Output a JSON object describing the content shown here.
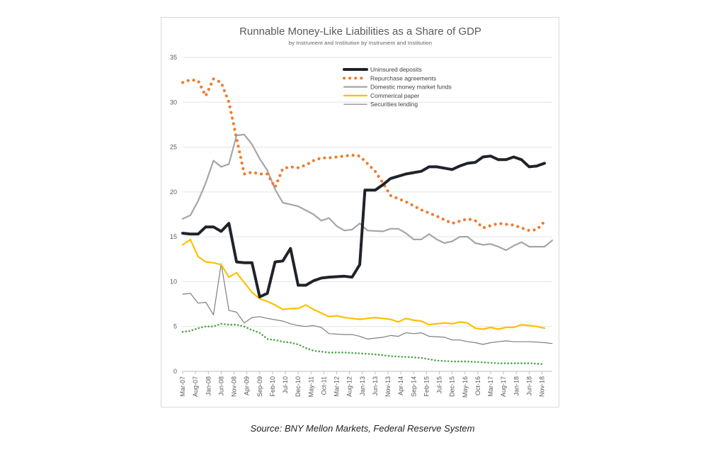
{
  "chart_data": {
    "type": "line",
    "title": "Runnable Money-Like Liabilities as a Share of GDP",
    "subtitle": "by Instrument and Institution by Instrument and Institution",
    "xlabel": "",
    "ylabel": "",
    "ylim": [
      0,
      35
    ],
    "yticks": [
      0,
      5,
      10,
      15,
      20,
      25,
      30,
      35
    ],
    "x_start": "2007-03",
    "x_end": "2019-03",
    "x_ticks": [
      "Mar-07",
      "Aug-07",
      "Jan-08",
      "Jun-08",
      "Nov-08",
      "Apr-09",
      "Sep-09",
      "Feb-10",
      "Jul-10",
      "Dec-10",
      "May-11",
      "Oct-11",
      "Mar-12",
      "Aug-12",
      "Jan-13",
      "Jun-13",
      "Nov-13",
      "Apr-14",
      "Sep-14",
      "Feb-15",
      "Jul-15",
      "Dec-15",
      "May-16",
      "Oct-16",
      "Mar-17",
      "Aug-17",
      "Jan-18",
      "Jun-18",
      "Nov-18"
    ],
    "grid": "horizontal",
    "legend_position": "top-center",
    "series": [
      {
        "name": "Uninsured deposits",
        "color": "#1f2329",
        "style": "solid-thick",
        "points": [
          [
            "2007-03",
            15.4
          ],
          [
            "2007-06",
            15.3
          ],
          [
            "2007-09",
            15.3
          ],
          [
            "2007-12",
            16.1
          ],
          [
            "2008-03",
            16.1
          ],
          [
            "2008-06",
            15.6
          ],
          [
            "2008-09",
            16.5
          ],
          [
            "2008-12",
            12.2
          ],
          [
            "2009-03",
            12.1
          ],
          [
            "2009-06",
            12.1
          ],
          [
            "2009-09",
            8.3
          ],
          [
            "2009-12",
            8.7
          ],
          [
            "2010-03",
            12.2
          ],
          [
            "2010-06",
            12.3
          ],
          [
            "2010-09",
            13.7
          ],
          [
            "2010-12",
            9.6
          ],
          [
            "2011-03",
            9.6
          ],
          [
            "2011-06",
            10.1
          ],
          [
            "2011-09",
            10.4
          ],
          [
            "2011-12",
            10.5
          ],
          [
            "2012-06",
            10.6
          ],
          [
            "2012-09",
            10.5
          ],
          [
            "2012-12",
            11.9
          ],
          [
            "2013-02",
            20.2
          ],
          [
            "2013-06",
            20.2
          ],
          [
            "2013-09",
            20.8
          ],
          [
            "2013-12",
            21.5
          ],
          [
            "2014-06",
            22.0
          ],
          [
            "2014-12",
            22.3
          ],
          [
            "2015-03",
            22.8
          ],
          [
            "2015-06",
            22.8
          ],
          [
            "2015-12",
            22.5
          ],
          [
            "2016-03",
            22.9
          ],
          [
            "2016-06",
            23.2
          ],
          [
            "2016-09",
            23.3
          ],
          [
            "2016-12",
            23.9
          ],
          [
            "2017-03",
            24.0
          ],
          [
            "2017-06",
            23.6
          ],
          [
            "2017-09",
            23.6
          ],
          [
            "2017-12",
            23.9
          ],
          [
            "2018-03",
            23.6
          ],
          [
            "2018-06",
            22.8
          ],
          [
            "2018-09",
            22.9
          ],
          [
            "2018-12",
            23.2
          ]
        ]
      },
      {
        "name": "Repurchase agreements",
        "color": "#ed7d31",
        "style": "dotted",
        "points": [
          [
            "2007-03",
            32.2
          ],
          [
            "2007-06",
            32.5
          ],
          [
            "2007-09",
            32.4
          ],
          [
            "2007-12",
            30.7
          ],
          [
            "2008-03",
            32.6
          ],
          [
            "2008-06",
            32.2
          ],
          [
            "2008-09",
            30.0
          ],
          [
            "2008-12",
            26.0
          ],
          [
            "2009-03",
            22.0
          ],
          [
            "2009-06",
            22.2
          ],
          [
            "2009-09",
            22.0
          ],
          [
            "2009-12",
            22.0
          ],
          [
            "2010-03",
            20.5
          ],
          [
            "2010-06",
            22.6
          ],
          [
            "2010-09",
            22.8
          ],
          [
            "2010-12",
            22.7
          ],
          [
            "2011-03",
            23.0
          ],
          [
            "2011-06",
            23.5
          ],
          [
            "2011-09",
            23.8
          ],
          [
            "2011-12",
            23.8
          ],
          [
            "2012-06",
            24.0
          ],
          [
            "2012-09",
            24.1
          ],
          [
            "2012-12",
            24.0
          ],
          [
            "2013-06",
            22.3
          ],
          [
            "2013-09",
            21.0
          ],
          [
            "2013-12",
            19.6
          ],
          [
            "2014-06",
            18.9
          ],
          [
            "2014-12",
            18.0
          ],
          [
            "2015-06",
            17.3
          ],
          [
            "2015-12",
            16.5
          ],
          [
            "2016-06",
            17.0
          ],
          [
            "2016-09",
            16.8
          ],
          [
            "2016-12",
            16.0
          ],
          [
            "2017-06",
            16.5
          ],
          [
            "2017-12",
            16.3
          ],
          [
            "2018-06",
            15.7
          ],
          [
            "2018-09",
            15.8
          ],
          [
            "2018-12",
            16.7
          ]
        ]
      },
      {
        "name": "Domestic money market funds",
        "color": "#a6a6a6",
        "style": "solid",
        "points": [
          [
            "2007-03",
            17.0
          ],
          [
            "2007-06",
            17.4
          ],
          [
            "2007-09",
            19.0
          ],
          [
            "2007-12",
            21.0
          ],
          [
            "2008-03",
            23.5
          ],
          [
            "2008-06",
            22.8
          ],
          [
            "2008-09",
            23.1
          ],
          [
            "2008-12",
            26.3
          ],
          [
            "2009-03",
            26.4
          ],
          [
            "2009-06",
            25.3
          ],
          [
            "2009-09",
            23.7
          ],
          [
            "2009-12",
            22.4
          ],
          [
            "2010-03",
            20.3
          ],
          [
            "2010-06",
            18.8
          ],
          [
            "2010-12",
            18.4
          ],
          [
            "2011-06",
            17.5
          ],
          [
            "2011-09",
            16.8
          ],
          [
            "2011-12",
            17.1
          ],
          [
            "2012-03",
            16.2
          ],
          [
            "2012-06",
            15.7
          ],
          [
            "2012-09",
            15.8
          ],
          [
            "2012-12",
            16.5
          ],
          [
            "2013-03",
            15.7
          ],
          [
            "2013-09",
            15.6
          ],
          [
            "2013-12",
            15.9
          ],
          [
            "2014-03",
            15.9
          ],
          [
            "2014-06",
            15.4
          ],
          [
            "2014-09",
            14.7
          ],
          [
            "2014-12",
            14.7
          ],
          [
            "2015-03",
            15.3
          ],
          [
            "2015-06",
            14.7
          ],
          [
            "2015-09",
            14.3
          ],
          [
            "2015-12",
            14.5
          ],
          [
            "2016-03",
            15.0
          ],
          [
            "2016-06",
            15.0
          ],
          [
            "2016-09",
            14.3
          ],
          [
            "2016-12",
            14.1
          ],
          [
            "2017-03",
            14.2
          ],
          [
            "2017-06",
            13.9
          ],
          [
            "2017-09",
            13.5
          ],
          [
            "2017-12",
            14.0
          ],
          [
            "2018-03",
            14.4
          ],
          [
            "2018-06",
            13.9
          ],
          [
            "2018-12",
            13.9
          ],
          [
            "2019-03",
            14.6
          ]
        ]
      },
      {
        "name": "Commerical paper",
        "color": "#ffc000",
        "style": "solid",
        "points": [
          [
            "2007-03",
            14.1
          ],
          [
            "2007-06",
            14.7
          ],
          [
            "2007-09",
            12.8
          ],
          [
            "2007-12",
            12.2
          ],
          [
            "2008-03",
            12.1
          ],
          [
            "2008-06",
            11.9
          ],
          [
            "2008-09",
            10.5
          ],
          [
            "2008-12",
            11.0
          ],
          [
            "2009-03",
            9.9
          ],
          [
            "2009-06",
            8.8
          ],
          [
            "2009-09",
            8.1
          ],
          [
            "2009-12",
            7.8
          ],
          [
            "2010-03",
            7.4
          ],
          [
            "2010-06",
            6.9
          ],
          [
            "2010-09",
            7.0
          ],
          [
            "2010-12",
            7.0
          ],
          [
            "2011-03",
            7.4
          ],
          [
            "2011-06",
            6.9
          ],
          [
            "2011-09",
            6.5
          ],
          [
            "2011-12",
            6.1
          ],
          [
            "2012-03",
            6.2
          ],
          [
            "2012-06",
            6.0
          ],
          [
            "2012-09",
            5.9
          ],
          [
            "2012-12",
            5.8
          ],
          [
            "2013-03",
            5.9
          ],
          [
            "2013-06",
            6.0
          ],
          [
            "2013-09",
            5.9
          ],
          [
            "2013-12",
            5.8
          ],
          [
            "2014-03",
            5.5
          ],
          [
            "2014-06",
            5.9
          ],
          [
            "2014-09",
            5.7
          ],
          [
            "2014-12",
            5.6
          ],
          [
            "2015-03",
            5.2
          ],
          [
            "2015-06",
            5.3
          ],
          [
            "2015-09",
            5.4
          ],
          [
            "2015-12",
            5.3
          ],
          [
            "2016-03",
            5.5
          ],
          [
            "2016-06",
            5.4
          ],
          [
            "2016-09",
            4.8
          ],
          [
            "2016-12",
            4.7
          ],
          [
            "2017-03",
            4.9
          ],
          [
            "2017-06",
            4.7
          ],
          [
            "2017-09",
            4.9
          ],
          [
            "2017-12",
            4.9
          ],
          [
            "2018-03",
            5.2
          ],
          [
            "2018-06",
            5.1
          ],
          [
            "2018-09",
            5.0
          ],
          [
            "2018-12",
            4.8
          ]
        ]
      },
      {
        "name": "Securities lending",
        "color": "#7f7f7f",
        "style": "solid-thin",
        "points": [
          [
            "2007-03",
            8.6
          ],
          [
            "2007-06",
            8.7
          ],
          [
            "2007-09",
            7.6
          ],
          [
            "2007-12",
            7.7
          ],
          [
            "2008-03",
            6.3
          ],
          [
            "2008-06",
            12.0
          ],
          [
            "2008-09",
            6.8
          ],
          [
            "2008-12",
            6.6
          ],
          [
            "2009-03",
            5.4
          ],
          [
            "2009-06",
            6.0
          ],
          [
            "2009-09",
            6.1
          ],
          [
            "2009-12",
            5.9
          ],
          [
            "2010-06",
            5.6
          ],
          [
            "2010-09",
            5.3
          ],
          [
            "2010-12",
            5.1
          ],
          [
            "2011-03",
            5.0
          ],
          [
            "2011-06",
            5.1
          ],
          [
            "2011-09",
            4.9
          ],
          [
            "2011-12",
            4.2
          ],
          [
            "2012-06",
            4.1
          ],
          [
            "2012-09",
            4.1
          ],
          [
            "2012-12",
            3.9
          ],
          [
            "2013-03",
            3.6
          ],
          [
            "2013-09",
            3.8
          ],
          [
            "2013-12",
            4.0
          ],
          [
            "2014-03",
            3.9
          ],
          [
            "2014-06",
            4.3
          ],
          [
            "2014-09",
            4.2
          ],
          [
            "2014-12",
            4.3
          ],
          [
            "2015-03",
            3.9
          ],
          [
            "2015-09",
            3.8
          ],
          [
            "2015-12",
            3.5
          ],
          [
            "2016-03",
            3.5
          ],
          [
            "2016-06",
            3.3
          ],
          [
            "2016-09",
            3.2
          ],
          [
            "2016-12",
            3.0
          ],
          [
            "2017-03",
            3.2
          ],
          [
            "2017-06",
            3.3
          ],
          [
            "2017-09",
            3.4
          ],
          [
            "2017-12",
            3.3
          ],
          [
            "2018-03",
            3.3
          ],
          [
            "2018-06",
            3.3
          ],
          [
            "2018-12",
            3.2
          ],
          [
            "2019-03",
            3.1
          ]
        ]
      },
      {
        "name": "",
        "color": "#4ca64c",
        "style": "dotted-small",
        "points": [
          [
            "2007-03",
            4.4
          ],
          [
            "2007-06",
            4.5
          ],
          [
            "2007-09",
            4.8
          ],
          [
            "2007-12",
            5.0
          ],
          [
            "2008-03",
            5.0
          ],
          [
            "2008-06",
            5.3
          ],
          [
            "2008-09",
            5.2
          ],
          [
            "2008-12",
            5.2
          ],
          [
            "2009-03",
            5.0
          ],
          [
            "2009-06",
            4.6
          ],
          [
            "2009-09",
            4.3
          ],
          [
            "2009-12",
            3.6
          ],
          [
            "2010-03",
            3.5
          ],
          [
            "2010-06",
            3.3
          ],
          [
            "2010-09",
            3.2
          ],
          [
            "2010-12",
            3.0
          ],
          [
            "2011-03",
            2.6
          ],
          [
            "2011-06",
            2.3
          ],
          [
            "2011-09",
            2.2
          ],
          [
            "2011-12",
            2.1
          ],
          [
            "2012-06",
            2.1
          ],
          [
            "2012-12",
            2.0
          ],
          [
            "2013-06",
            1.9
          ],
          [
            "2013-12",
            1.7
          ],
          [
            "2014-06",
            1.6
          ],
          [
            "2014-12",
            1.5
          ],
          [
            "2015-06",
            1.2
          ],
          [
            "2015-12",
            1.1
          ],
          [
            "2016-06",
            1.1
          ],
          [
            "2016-12",
            1.0
          ],
          [
            "2017-06",
            0.9
          ],
          [
            "2017-12",
            0.9
          ],
          [
            "2018-06",
            0.9
          ],
          [
            "2018-12",
            0.8
          ]
        ]
      }
    ]
  },
  "source": "Source: BNY Mellon Markets, Federal Reserve System"
}
